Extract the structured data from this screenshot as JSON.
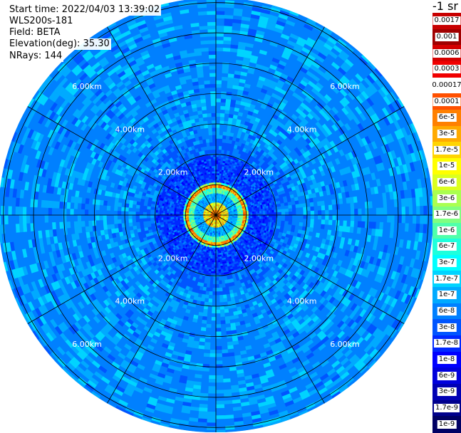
{
  "header": {
    "start_time": "Start time: 2022/04/03 13:39:02",
    "instrument": "WLS200s-181",
    "field": "Field: BETA",
    "elevation": "Elevation(deg): 35.30",
    "nrays": "NRays: 144"
  },
  "colorbar": {
    "units": "-1 sr",
    "ticks": [
      "0.0017",
      "0.001",
      "0.0006",
      "0.0003",
      "0.00017",
      "0.0001",
      "6e-5",
      "3e-5",
      "1.7e-5",
      "1e-5",
      "6e-6",
      "3e-6",
      "1.7e-6",
      "1e-6",
      "6e-7",
      "3e-7",
      "1.7e-7",
      "1e-7",
      "6e-8",
      "3e-8",
      "1.7e-8",
      "1e-8",
      "6e-9",
      "3e-9",
      "1.7e-9",
      "1e-9"
    ],
    "colors": [
      "#c80000",
      "#a00000",
      "#d40000",
      "#f00000",
      "#ffffff",
      "#ff5000",
      "#ff8000",
      "#ffaa00",
      "#ffd400",
      "#ffff00",
      "#dcff1e",
      "#aaff50",
      "#80ff80",
      "#50ffaa",
      "#1effdc",
      "#00ffff",
      "#00d4ff",
      "#00aaff",
      "#0080ff",
      "#0055ff",
      "#0028ff",
      "#0000ff",
      "#0000dc",
      "#0000b4",
      "#00008c",
      "#000064"
    ]
  },
  "chart_data": {
    "type": "heatmap",
    "plot": "PPI polar scan",
    "range_rings_km": [
      2,
      4,
      6
    ],
    "range_ring_labels": [
      "2.00km",
      "4.00km",
      "6.00km"
    ],
    "nrays": 144,
    "radial_spokes": 12,
    "max_range_km": 7.15,
    "field": "BETA",
    "elevation_deg": 35.3,
    "features": {
      "near_range_peak_km": 0.2,
      "ring_echo_km": 0.95,
      "background_level": "3e-8"
    }
  }
}
